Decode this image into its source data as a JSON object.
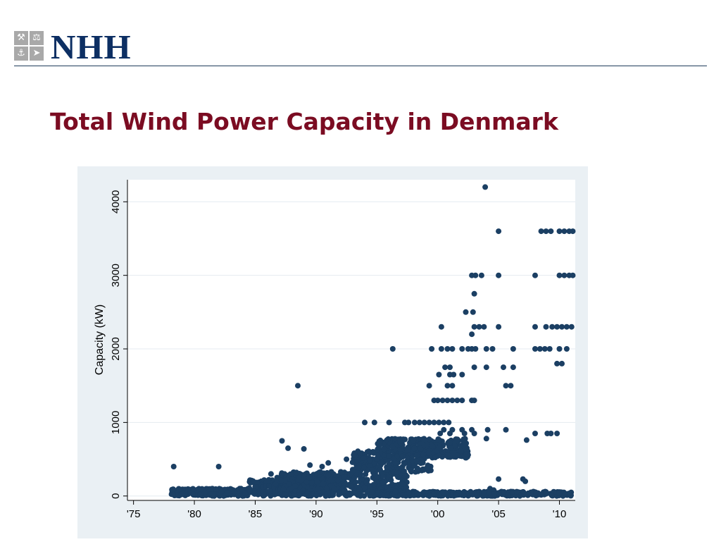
{
  "brand": {
    "logo_text": "NHH",
    "logo_color": "#0d2f63",
    "logo_icons": [
      "crossed-tools-icon",
      "scales-icon",
      "anchor-icon",
      "fish-icon"
    ]
  },
  "slide": {
    "title": "Total Wind Power Capacity in Denmark",
    "title_color": "#7b0c22"
  },
  "chart_data": {
    "type": "scatter",
    "ylabel": "Capacity (kW)",
    "xlabel": "",
    "xlim": [
      1974.5,
      2011.3
    ],
    "ylim": [
      -60,
      4300
    ],
    "x_ticks": [
      {
        "value": 1975,
        "label": "'75"
      },
      {
        "value": 1980,
        "label": "'80"
      },
      {
        "value": 1985,
        "label": "'85"
      },
      {
        "value": 1990,
        "label": "'90"
      },
      {
        "value": 1995,
        "label": "'95"
      },
      {
        "value": 2000,
        "label": "'00"
      },
      {
        "value": 2005,
        "label": "'05"
      },
      {
        "value": 2010,
        "label": "'10"
      }
    ],
    "y_ticks": [
      {
        "value": 0,
        "label": "0"
      },
      {
        "value": 1000,
        "label": "1000"
      },
      {
        "value": 2000,
        "label": "2000"
      },
      {
        "value": 3000,
        "label": "3000"
      },
      {
        "value": 4000,
        "label": "4000"
      }
    ],
    "grid": "horizontal",
    "legend": "none",
    "colors": {
      "point": "#1b3f63",
      "plot_bg": "#ffffff",
      "outer_bg": "#eaf0f4",
      "grid": "#e4ebf0"
    },
    "points": [
      [
        1978.3,
        400
      ],
      [
        1982.0,
        400
      ],
      [
        1988.5,
        1500
      ],
      [
        1987.2,
        750
      ],
      [
        1987.7,
        650
      ],
      [
        1989.0,
        640
      ],
      [
        1986.3,
        300
      ],
      [
        1986.8,
        250
      ],
      [
        1985.5,
        200
      ],
      [
        1989.5,
        420
      ],
      [
        1990.5,
        400
      ],
      [
        1991.0,
        450
      ],
      [
        1994.0,
        1000
      ],
      [
        1994.8,
        1000
      ],
      [
        1996.3,
        2000
      ],
      [
        1996.0,
        1000
      ],
      [
        1993.5,
        500
      ],
      [
        1992.5,
        500
      ],
      [
        1997.3,
        1000
      ],
      [
        1997.6,
        1000
      ],
      [
        1998.1,
        1000
      ],
      [
        1998.5,
        1000
      ],
      [
        1998.9,
        1000
      ],
      [
        1999.3,
        1000
      ],
      [
        1999.7,
        1000
      ],
      [
        2000.1,
        1000
      ],
      [
        2000.5,
        1000
      ],
      [
        2000.9,
        1000
      ],
      [
        1999.3,
        1500
      ],
      [
        1999.7,
        1300
      ],
      [
        2000.0,
        1300
      ],
      [
        2000.4,
        1300
      ],
      [
        2000.8,
        1300
      ],
      [
        2001.2,
        1300
      ],
      [
        2001.6,
        1300
      ],
      [
        2002.0,
        1300
      ],
      [
        2002.8,
        1300
      ],
      [
        2003.0,
        1300
      ],
      [
        1999.5,
        2000
      ],
      [
        2000.3,
        2000
      ],
      [
        2000.8,
        2000
      ],
      [
        2001.2,
        2000
      ],
      [
        2002.0,
        2000
      ],
      [
        2002.5,
        2000
      ],
      [
        2002.8,
        2000
      ],
      [
        2003.1,
        2000
      ],
      [
        2004.0,
        2000
      ],
      [
        2004.5,
        2000
      ],
      [
        2006.2,
        2000
      ],
      [
        2000.3,
        2300
      ],
      [
        2002.8,
        2200
      ],
      [
        2003.0,
        2300
      ],
      [
        2003.4,
        2300
      ],
      [
        2003.8,
        2300
      ],
      [
        2005.0,
        2300
      ],
      [
        2002.3,
        2500
      ],
      [
        2002.9,
        2500
      ],
      [
        2003.0,
        2750
      ],
      [
        2002.8,
        3000
      ],
      [
        2003.1,
        3000
      ],
      [
        2003.6,
        3000
      ],
      [
        2005.0,
        3000
      ],
      [
        2003.9,
        4200
      ],
      [
        2005.0,
        3600
      ],
      [
        2000.6,
        1750
      ],
      [
        2001.0,
        1750
      ],
      [
        2003.0,
        1750
      ],
      [
        2004.0,
        1750
      ],
      [
        2005.4,
        1750
      ],
      [
        2006.2,
        1750
      ],
      [
        2000.1,
        1650
      ],
      [
        2001.0,
        1650
      ],
      [
        2001.3,
        1650
      ],
      [
        2002.0,
        1650
      ],
      [
        2000.8,
        1500
      ],
      [
        2001.2,
        1500
      ],
      [
        2005.6,
        1500
      ],
      [
        2006.0,
        1500
      ],
      [
        2000.5,
        900
      ],
      [
        2001.2,
        900
      ],
      [
        2002.0,
        900
      ],
      [
        2002.8,
        900
      ],
      [
        2004.1,
        900
      ],
      [
        2005.6,
        900
      ],
      [
        2000.2,
        850
      ],
      [
        2001.0,
        850
      ],
      [
        2002.2,
        850
      ],
      [
        2003.0,
        850
      ],
      [
        2004.0,
        780
      ],
      [
        2007.3,
        760
      ],
      [
        2008.0,
        850
      ],
      [
        2009.0,
        850
      ],
      [
        2009.3,
        850
      ],
      [
        2009.8,
        850
      ],
      [
        2005.0,
        230
      ],
      [
        2004.3,
        100
      ],
      [
        2006.0,
        60
      ],
      [
        2007.0,
        230
      ],
      [
        2007.2,
        200
      ],
      [
        2004.6,
        80
      ],
      [
        2008.0,
        3000
      ],
      [
        2010.0,
        3000
      ],
      [
        2010.4,
        3000
      ],
      [
        2010.8,
        3000
      ],
      [
        2011.1,
        3000
      ],
      [
        2008.5,
        3600
      ],
      [
        2008.9,
        3600
      ],
      [
        2009.3,
        3600
      ],
      [
        2010.0,
        3600
      ],
      [
        2010.4,
        3600
      ],
      [
        2010.8,
        3600
      ],
      [
        2011.1,
        3600
      ],
      [
        2008.0,
        2300
      ],
      [
        2008.9,
        2300
      ],
      [
        2009.4,
        2300
      ],
      [
        2009.8,
        2300
      ],
      [
        2010.2,
        2300
      ],
      [
        2010.6,
        2300
      ],
      [
        2011.0,
        2300
      ],
      [
        2008.0,
        2000
      ],
      [
        2008.4,
        2000
      ],
      [
        2008.8,
        2000
      ],
      [
        2009.2,
        2000
      ],
      [
        2010.0,
        2000
      ],
      [
        2010.6,
        2000
      ],
      [
        2009.8,
        1800
      ],
      [
        2010.2,
        1800
      ]
    ],
    "point_bands": [
      {
        "x": [
          1978.0,
          1984.5
        ],
        "y": [
          0,
          100
        ],
        "count": 220
      },
      {
        "x": [
          1984.5,
          1990.0
        ],
        "y": [
          0,
          230
        ],
        "count": 260
      },
      {
        "x": [
          1987.0,
          1992.5
        ],
        "y": [
          80,
          330
        ],
        "count": 200
      },
      {
        "x": [
          1990.0,
          1997.5
        ],
        "y": [
          0,
          330
        ],
        "count": 320
      },
      {
        "x": [
          1993.0,
          1999.5
        ],
        "y": [
          320,
          620
        ],
        "count": 220
      },
      {
        "x": [
          1995.0,
          2002.5
        ],
        "y": [
          520,
          780
        ],
        "count": 300
      },
      {
        "x": [
          1995.0,
          2011.0
        ],
        "y": [
          0,
          60
        ],
        "count": 320
      }
    ]
  }
}
